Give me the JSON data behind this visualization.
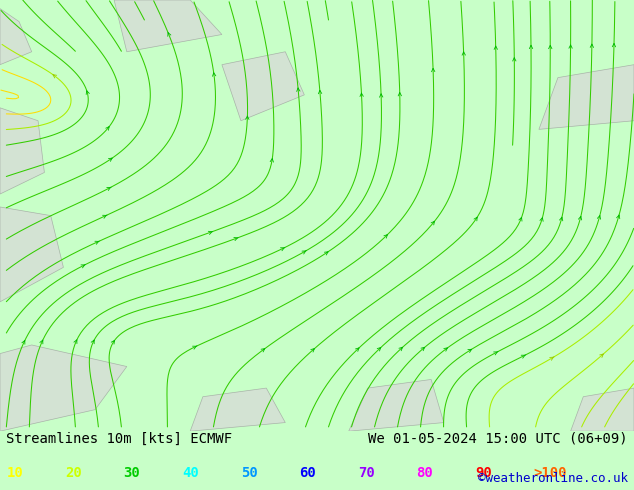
{
  "title_left": "Streamlines 10m [kts] ECMWF",
  "title_right": "We 01-05-2024 15:00 UTC (06+09)",
  "watermark": "©weatheronline.co.uk",
  "legend_labels": [
    "10",
    "20",
    "30",
    "40",
    "50",
    "60",
    "70",
    "80",
    "90",
    ">100"
  ],
  "legend_colors": [
    "#ffff00",
    "#cdff00",
    "#00cc00",
    "#00ffff",
    "#0096ff",
    "#0000ff",
    "#9600ff",
    "#ff00ff",
    "#ff0000",
    "#ff6400"
  ],
  "bg_color": "#c8ffc8",
  "land_color": "#c8ffc8",
  "gray_land": "#d8d8d8",
  "bottom_bar_color": "#c8ffc8",
  "font_size_title": 10,
  "font_size_legend": 10,
  "font_size_watermark": 9,
  "arrow_color_yellow": "#ffaa00",
  "arrow_color_green": "#00bb00",
  "line_color_yellow": "#ffdd00",
  "line_color_ygreen": "#aaee00",
  "line_color_green": "#33cc00"
}
